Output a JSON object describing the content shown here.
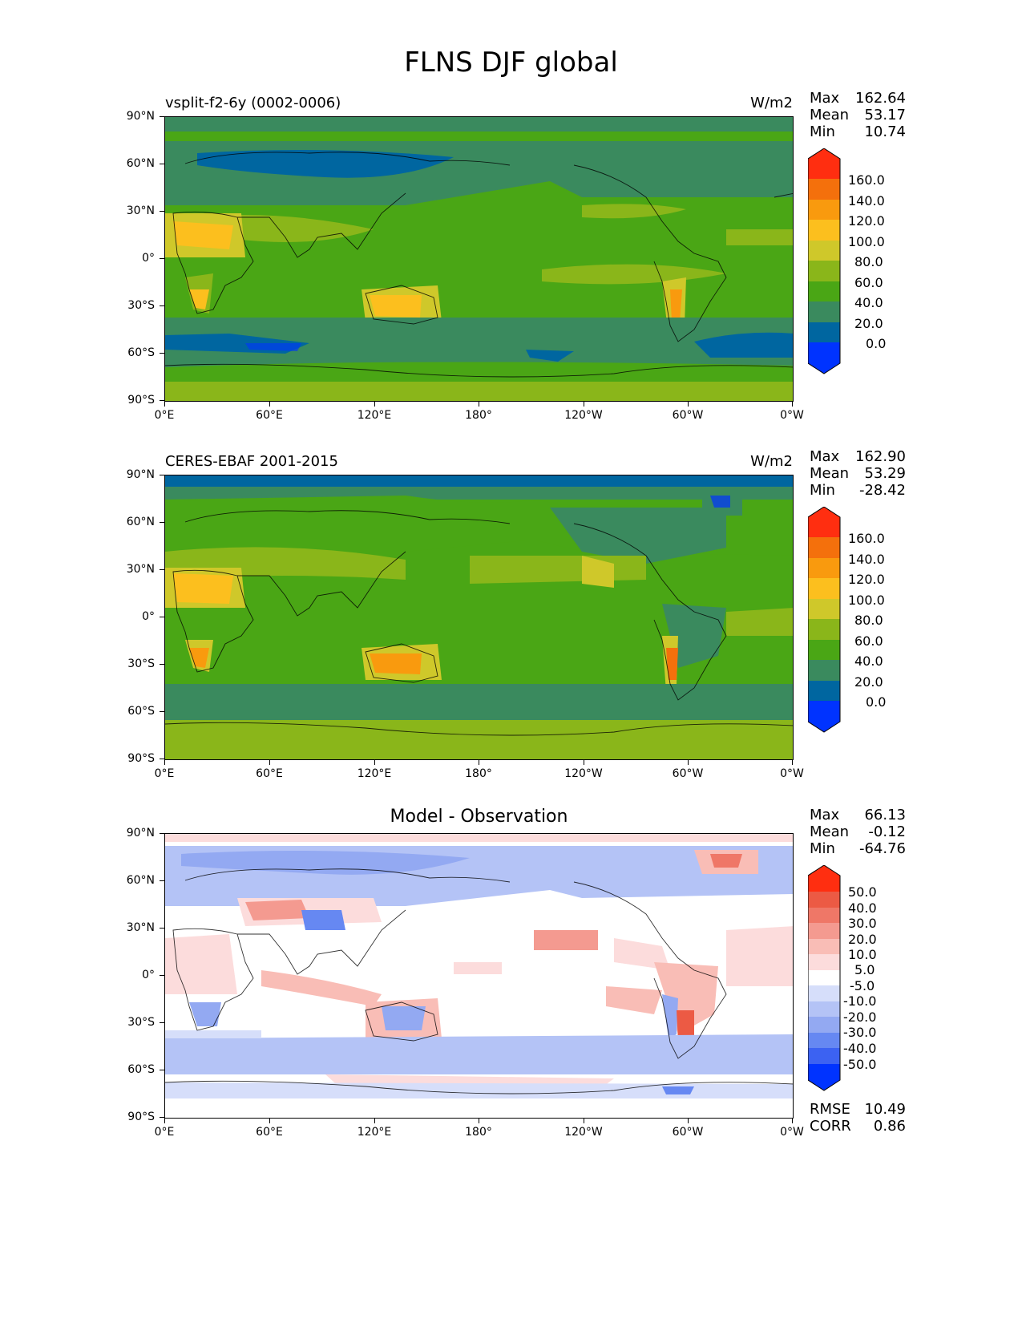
{
  "figure": {
    "title": "FLNS DJF global"
  },
  "panels": [
    {
      "label_left": "vsplit-f2-6y (0002-0006)",
      "label_right": "W/m2",
      "stats": [
        {
          "key": "Max",
          "value": "162.64"
        },
        {
          "key": "Mean",
          "value": "53.17"
        },
        {
          "key": "Min",
          "value": "10.74"
        }
      ],
      "colorbar_labels": [
        "160.0",
        "140.0",
        "120.0",
        "100.0",
        "80.0",
        "60.0",
        "40.0",
        "20.0",
        "0.0"
      ]
    },
    {
      "label_left": "CERES-EBAF 2001-2015",
      "label_right": "W/m2",
      "stats": [
        {
          "key": "Max",
          "value": "162.90"
        },
        {
          "key": "Mean",
          "value": "53.29"
        },
        {
          "key": "Min",
          "value": "-28.42"
        }
      ],
      "colorbar_labels": [
        "160.0",
        "140.0",
        "120.0",
        "100.0",
        "80.0",
        "60.0",
        "40.0",
        "20.0",
        "0.0"
      ]
    },
    {
      "title": "Model - Observation",
      "stats": [
        {
          "key": "Max",
          "value": "66.13"
        },
        {
          "key": "Mean",
          "value": "-0.12"
        },
        {
          "key": "Min",
          "value": "-64.76"
        }
      ],
      "colorbar_labels": [
        "50.0",
        "40.0",
        "30.0",
        "20.0",
        "10.0",
        "5.0",
        "-5.0",
        "-10.0",
        "-20.0",
        "-30.0",
        "-40.0",
        "-50.0"
      ],
      "extra_stats": [
        {
          "key": "RMSE",
          "value": "10.49"
        },
        {
          "key": "CORR",
          "value": "0.86"
        }
      ]
    }
  ],
  "axes": {
    "y_ticks": [
      "90°N",
      "60°N",
      "30°N",
      "0°",
      "30°S",
      "60°S",
      "90°S"
    ],
    "x_ticks": [
      "0°E",
      "60°E",
      "120°E",
      "180°",
      "120°W",
      "60°W",
      "0°W"
    ]
  },
  "colors": {
    "field_levels": [
      "#0033ff",
      "#0066a0",
      "#3a8a5e",
      "#4aa615",
      "#8ab61a",
      "#cfc82a",
      "#fcbf1e",
      "#f99a0e",
      "#f4700c",
      "#ff2e10"
    ],
    "diff_levels": [
      "#0033ff",
      "#3c62f2",
      "#6688f2",
      "#93a9f2",
      "#b4c3f6",
      "#d6defa",
      "#ffffff",
      "#fcdcdc",
      "#f9bdb6",
      "#f49a90",
      "#ef7767",
      "#ec5a44",
      "#ff2e10"
    ]
  }
}
